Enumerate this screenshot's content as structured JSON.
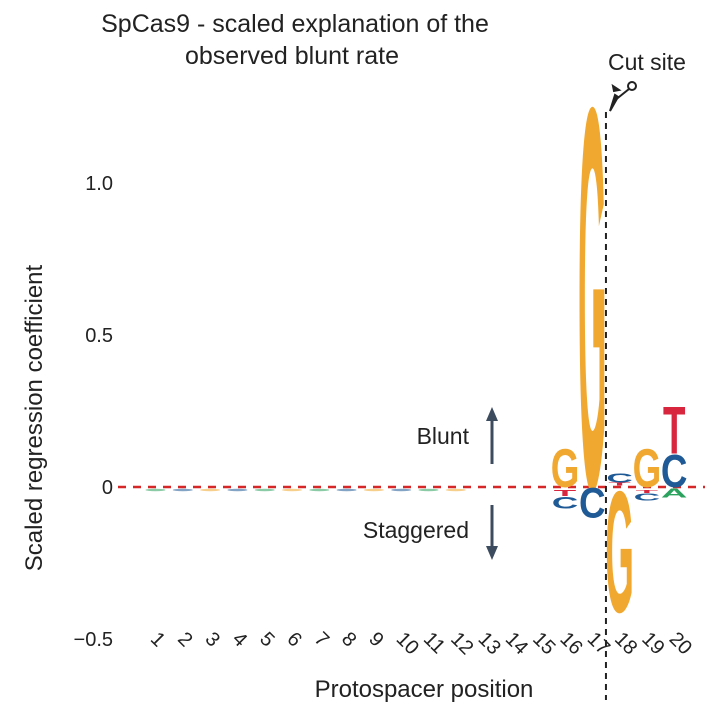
{
  "chart_data": {
    "type": "sequence-logo",
    "title_lines": [
      "SpCas9 - scaled explanation of the",
      "observed blunt rate"
    ],
    "xlabel": "Protospacer position",
    "ylabel": "Scaled regression coefficient",
    "ylim": [
      -0.5,
      1.25
    ],
    "yticks": [
      {
        "value": 1.0,
        "label": "1.0"
      },
      {
        "value": 0.5,
        "label": "0.5"
      },
      {
        "value": 0,
        "label": "0"
      },
      {
        "value": -0.5,
        "label": "−0.5"
      }
    ],
    "positions": [
      "1",
      "2",
      "3",
      "4",
      "5",
      "6",
      "7",
      "8",
      "9",
      "10",
      "11",
      "12",
      "13",
      "14",
      "15",
      "16",
      "17",
      "18",
      "19",
      "20"
    ],
    "baseline": 0,
    "cut_site": {
      "label": "Cut site",
      "after_position": 17
    },
    "annotations": {
      "blunt": "Blunt",
      "staggered": "Staggered"
    },
    "colors": {
      "A": "#2ca25f",
      "C": "#1f5a96",
      "G": "#f0a830",
      "T": "#d7263d",
      "baseline": "#d62728",
      "arrow": "#3c4b5e"
    },
    "letters": [
      {
        "pos": 16,
        "base": "G",
        "from": 0,
        "to": 0.13
      },
      {
        "pos": 16,
        "base": "T",
        "from": -0.01,
        "to": -0.03
      },
      {
        "pos": 16,
        "base": "C",
        "from": -0.03,
        "to": -0.07
      },
      {
        "pos": 17,
        "base": "G",
        "from": 0,
        "to": 1.29
      },
      {
        "pos": 17,
        "base": "C",
        "from": 0,
        "to": -0.1
      },
      {
        "pos": 18,
        "base": "C",
        "from": 0.015,
        "to": 0.045
      },
      {
        "pos": 18,
        "base": "T",
        "from": 0.005,
        "to": 0.015
      },
      {
        "pos": 18,
        "base": "G",
        "from": 0,
        "to": -0.41
      },
      {
        "pos": 19,
        "base": "G",
        "from": 0,
        "to": 0.13
      },
      {
        "pos": 19,
        "base": "T",
        "from": -0.01,
        "to": -0.02
      },
      {
        "pos": 19,
        "base": "C",
        "from": -0.02,
        "to": -0.045
      },
      {
        "pos": 20,
        "base": "T",
        "from": 0.11,
        "to": 0.27
      },
      {
        "pos": 20,
        "base": "C",
        "from": 0,
        "to": 0.11
      },
      {
        "pos": 20,
        "base": "A",
        "from": -0.005,
        "to": -0.035
      }
    ]
  }
}
